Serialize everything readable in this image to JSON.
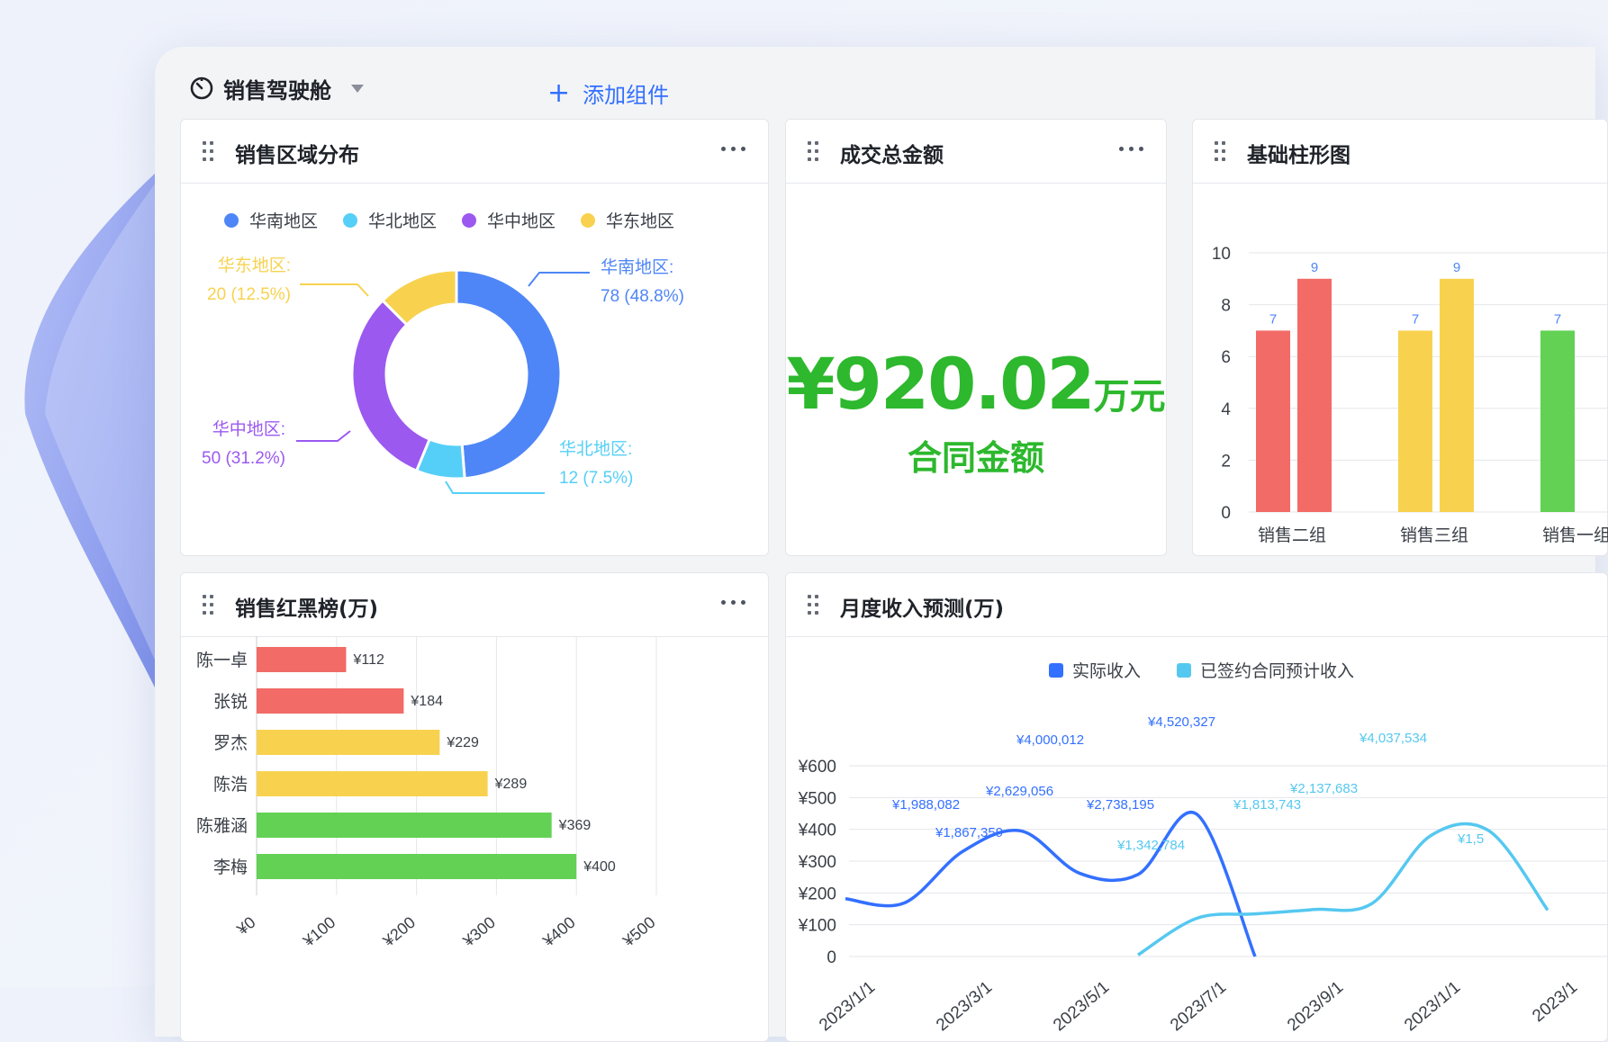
{
  "topbar": {
    "title": "销售驾驶舱",
    "add_label": "添加组件"
  },
  "cards": {
    "region": {
      "title": "销售区域分布"
    },
    "total": {
      "title": "成交总金额",
      "value": "¥920.02",
      "unit": "万元",
      "subtitle": "合同金额"
    },
    "bar": {
      "title": "基础柱形图"
    },
    "rank": {
      "title": "销售红黑榜(万)"
    },
    "forecast": {
      "title": "月度收入预测(万)"
    }
  },
  "colors": {
    "blue": "#4f86f7",
    "cyan": "#55cff7",
    "purple": "#9b59f0",
    "yellow": "#f8d24f",
    "red": "#f26b66",
    "green": "#62d154",
    "green_big": "#2db82d",
    "link": "#3370ff"
  },
  "chart_data": [
    {
      "id": "donut",
      "type": "pie",
      "legend": [
        "华南地区",
        "华北地区",
        "华中地区",
        "华东地区"
      ],
      "slices": [
        {
          "name": "华南地区",
          "value": 78,
          "label": "78 (48.8%)",
          "color": "#4f86f7"
        },
        {
          "name": "华北地区",
          "value": 12,
          "label": "12 (7.5%)",
          "color": "#55cff7"
        },
        {
          "name": "华中地区",
          "value": 50,
          "label": "50 (31.2%)",
          "color": "#9b59f0"
        },
        {
          "name": "华东地区",
          "value": 20,
          "label": "20 (12.5%)",
          "color": "#f8d24f"
        }
      ]
    },
    {
      "id": "columns",
      "type": "bar",
      "categories": [
        "销售二组",
        "销售三组",
        "销售一组"
      ],
      "ylim": [
        0,
        10
      ],
      "yticks": [
        0,
        2,
        4,
        6,
        8,
        10
      ],
      "groups": [
        {
          "values": [
            7,
            9
          ],
          "colors": [
            "#f26b66",
            "#f26b66"
          ]
        },
        {
          "values": [
            7,
            9
          ],
          "colors": [
            "#f8d24f",
            "#f8d24f"
          ]
        },
        {
          "values": [
            7
          ],
          "colors": [
            "#62d154"
          ]
        }
      ]
    },
    {
      "id": "ranking",
      "type": "bar",
      "orientation": "horizontal",
      "categories": [
        "陈一卓",
        "张锐",
        "罗杰",
        "陈浩",
        "陈雅涵",
        "李梅"
      ],
      "values": [
        112,
        184,
        229,
        289,
        369,
        400
      ],
      "value_labels": [
        "¥112",
        "¥184",
        "¥229",
        "¥289",
        "¥369",
        "¥400"
      ],
      "colors": [
        "#f26b66",
        "#f26b66",
        "#f8d24f",
        "#f8d24f",
        "#62d154",
        "#62d154"
      ],
      "xlim": [
        0,
        500
      ],
      "xticks": [
        "¥0",
        "¥100",
        "¥200",
        "¥300",
        "¥400",
        "¥500"
      ]
    },
    {
      "id": "forecast",
      "type": "line",
      "legend": [
        {
          "name": "实际收入",
          "color": "#3370ff"
        },
        {
          "name": "已签约合同预计收入",
          "color": "#55c8f0"
        }
      ],
      "yticks": [
        "0",
        "¥100",
        "¥200",
        "¥300",
        "¥400",
        "¥500",
        "¥600"
      ],
      "ylim": [
        0,
        600
      ],
      "xticks": [
        "2023/1/1",
        "2023/3/1",
        "2023/5/1",
        "2023/7/1",
        "2023/9/1",
        "2023/1/1",
        "2023/1"
      ],
      "series": [
        {
          "name": "实际收入",
          "color": "#3370ff",
          "x": [
            0,
            1,
            2,
            3,
            4,
            5,
            6,
            7
          ],
          "y": [
            182,
            168,
            330,
            395,
            262,
            258,
            448,
            0
          ]
        },
        {
          "name": "已签约合同预计收入",
          "color": "#55c8f0",
          "x": [
            5,
            6,
            7,
            8,
            9,
            10,
            11,
            12
          ],
          "y": [
            5,
            120,
            134,
            148,
            167,
            380,
            395,
            146
          ]
        }
      ],
      "annotations": [
        {
          "text": "¥1,988,082",
          "color": "#3370ff"
        },
        {
          "text": "¥1,867,359",
          "color": "#3370ff"
        },
        {
          "text": "¥2,629,056",
          "color": "#3370ff"
        },
        {
          "text": "¥4,000,012",
          "color": "#3370ff"
        },
        {
          "text": "¥2,738,195",
          "color": "#3370ff"
        },
        {
          "text": "¥4,520,327",
          "color": "#3370ff"
        },
        {
          "text": "¥1,342,784",
          "color": "#55c8f0"
        },
        {
          "text": "¥1,813,743",
          "color": "#55c8f0"
        },
        {
          "text": "¥2,137,683",
          "color": "#55c8f0"
        },
        {
          "text": "¥4,037,534",
          "color": "#55c8f0"
        },
        {
          "text": "¥1,5",
          "color": "#55c8f0"
        }
      ]
    }
  ]
}
